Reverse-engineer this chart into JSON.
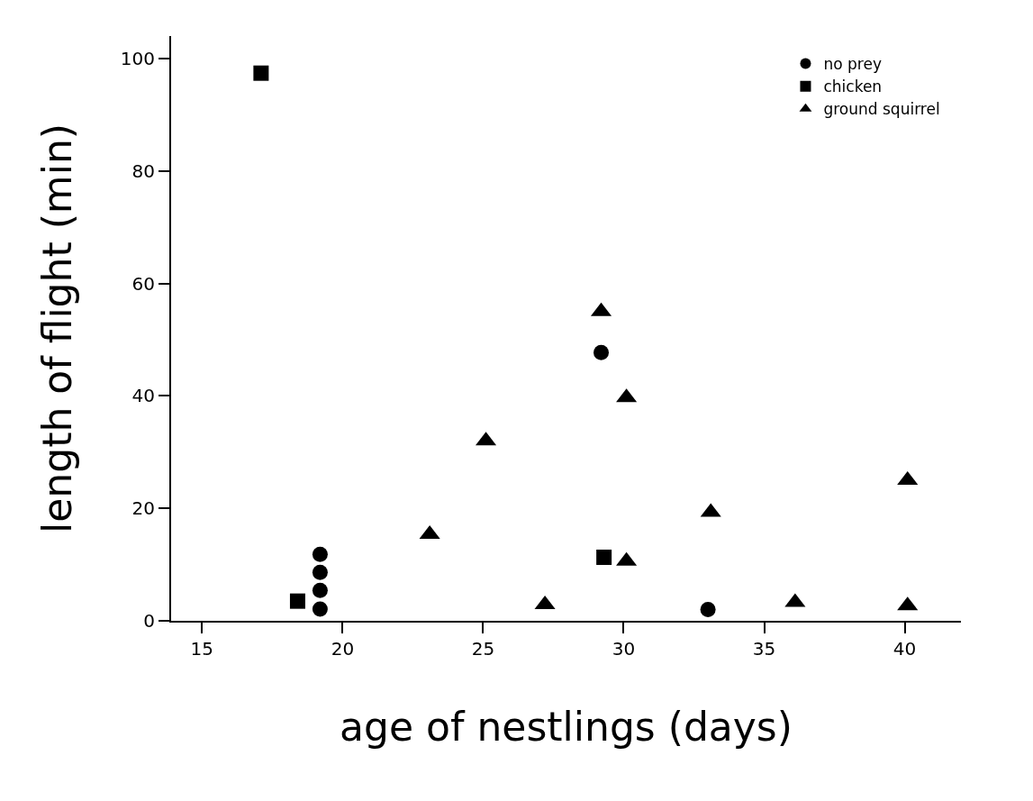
{
  "chart_data": {
    "type": "scatter",
    "xlabel": "age of nestlings (days)",
    "ylabel": "length of flight (min)",
    "xlim": [
      13.9,
      42
    ],
    "xticks": [
      15,
      20,
      25,
      30,
      35,
      40
    ],
    "ylim": [
      0,
      104
    ],
    "yticks": [
      0,
      20,
      40,
      60,
      80,
      100
    ],
    "legend": "top right",
    "series": [
      {
        "name": "no prey",
        "color": "#000000",
        "marker": "circle",
        "x": [
          19.2,
          19.2,
          19.2,
          19.2,
          29.2,
          33.0
        ],
        "values": [
          11.8,
          8.6,
          5.4,
          2.1,
          47.7,
          2.0
        ]
      },
      {
        "name": "chicken",
        "color": "#000000",
        "marker": "square",
        "x": [
          17.1,
          18.4,
          29.3
        ],
        "values": [
          97.4,
          3.5,
          11.3
        ]
      },
      {
        "name": "ground squirrel",
        "color": "#000000",
        "marker": "triangle",
        "x": [
          23.1,
          25.1,
          27.2,
          29.2,
          30.1,
          30.1,
          33.1,
          36.1,
          40.1,
          40.1
        ],
        "values": [
          15.4,
          32,
          2.9,
          55,
          39.7,
          10.6,
          19.3,
          3.3,
          2.7,
          25
        ]
      }
    ]
  }
}
